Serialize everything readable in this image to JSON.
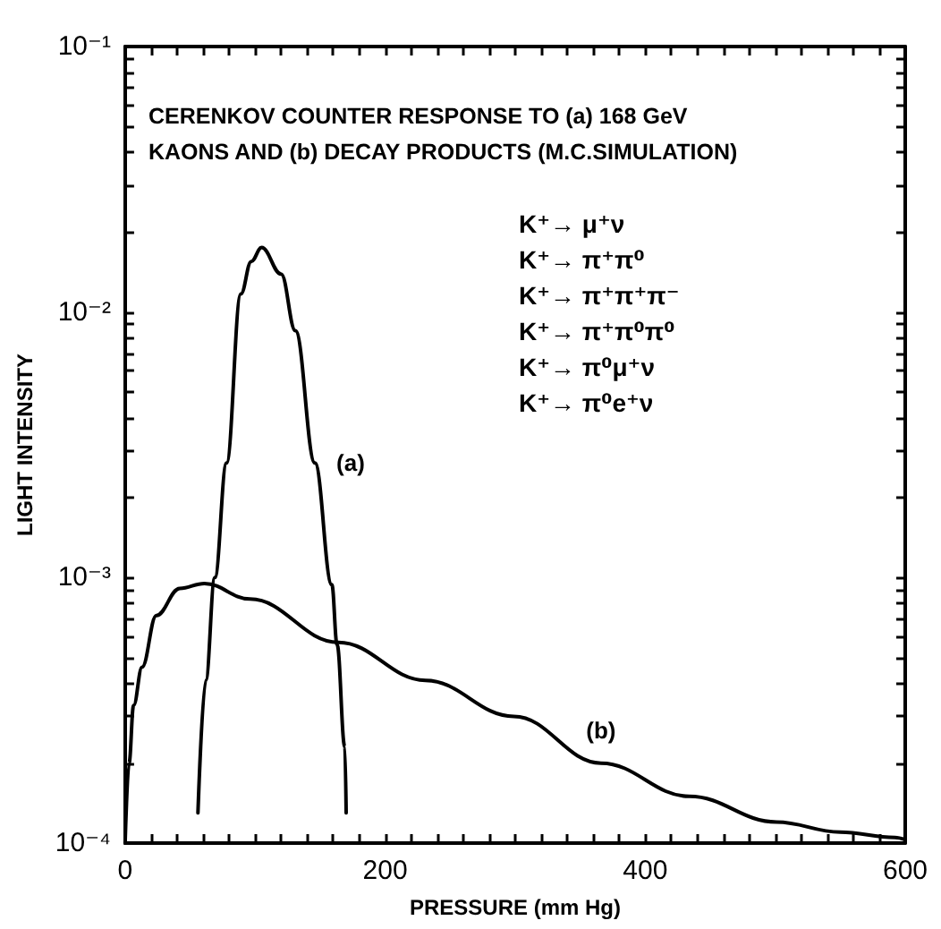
{
  "chart_data": {
    "type": "line",
    "title": "CERENKOV COUNTER RESPONSE TO (a) 168 GeV KAONS AND (b) DECAY PRODUCTS (M.C.SIMULATION)",
    "xlabel": "PRESSURE (mm Hg)",
    "ylabel": "LIGHT INTENSITY",
    "log": "y",
    "marker": "none",
    "line_style": "solid",
    "xlim": [
      0,
      600
    ],
    "ylim": [
      0.0001,
      0.1
    ],
    "xticks": [
      0,
      {
        "value": 20,
        "label": null
      },
      {
        "value": 40,
        "label": null
      },
      {
        "value": 60,
        "label": null
      },
      {
        "value": 80,
        "label": null
      },
      {
        "value": 100,
        "label": null
      },
      {
        "value": 120,
        "label": null
      },
      {
        "value": 140,
        "label": null
      },
      {
        "value": 160,
        "label": null
      },
      {
        "value": 180,
        "label": null
      },
      200,
      {
        "value": 220,
        "label": null
      },
      {
        "value": 240,
        "label": null
      },
      {
        "value": 260,
        "label": null
      },
      {
        "value": 280,
        "label": null
      },
      {
        "value": 300,
        "label": null
      },
      {
        "value": 320,
        "label": null
      },
      {
        "value": 340,
        "label": null
      },
      {
        "value": 360,
        "label": null
      },
      {
        "value": 380,
        "label": null
      },
      400,
      {
        "value": 420,
        "label": null
      },
      {
        "value": 440,
        "label": null
      },
      {
        "value": 460,
        "label": null
      },
      {
        "value": 480,
        "label": null
      },
      {
        "value": 500,
        "label": null
      },
      {
        "value": 520,
        "label": null
      },
      {
        "value": 540,
        "label": null
      },
      {
        "value": 560,
        "label": null
      },
      {
        "value": 580,
        "label": null
      },
      600
    ],
    "yticks": [
      {
        "value": 0.0001,
        "label": "10⁻⁴"
      },
      {
        "value": 0.0002,
        "label": null
      },
      {
        "value": 0.0003,
        "label": null
      },
      {
        "value": 0.0004,
        "label": null
      },
      {
        "value": 0.0005,
        "label": null
      },
      {
        "value": 0.0006,
        "label": null
      },
      {
        "value": 0.0007,
        "label": null
      },
      {
        "value": 0.0008,
        "label": null
      },
      {
        "value": 0.0009,
        "label": null
      },
      {
        "value": 0.001,
        "label": "10⁻³"
      },
      {
        "value": 0.002,
        "label": null
      },
      {
        "value": 0.003,
        "label": null
      },
      {
        "value": 0.004,
        "label": null
      },
      {
        "value": 0.005,
        "label": null
      },
      {
        "value": 0.006,
        "label": null
      },
      {
        "value": 0.007,
        "label": null
      },
      {
        "value": 0.008,
        "label": null
      },
      {
        "value": 0.009,
        "label": null
      },
      {
        "value": 0.01,
        "label": "10⁻²"
      },
      {
        "value": 0.02,
        "label": null
      },
      {
        "value": 0.03,
        "label": null
      },
      {
        "value": 0.04,
        "label": null
      },
      {
        "value": 0.05,
        "label": null
      },
      {
        "value": 0.06,
        "label": null
      },
      {
        "value": 0.07,
        "label": null
      },
      {
        "value": 0.08,
        "label": null
      },
      {
        "value": 0.09,
        "label": null
      },
      {
        "value": 0.1,
        "label": "10⁻¹"
      }
    ],
    "series": [
      {
        "name": "(a)",
        "color": "#000000",
        "x": [
          56,
          62,
          69,
          78,
          89,
          97,
          105,
          120,
          131,
          146,
          159,
          163,
          169,
          170
        ],
        "values": [
          0.00013,
          0.00041,
          0.001,
          0.0027,
          0.0117,
          0.0155,
          0.0175,
          0.0139,
          0.0085,
          0.0027,
          0.00094,
          0.00056,
          0.00023,
          0.00013
        ]
      },
      {
        "name": "(b)",
        "color": "#000000",
        "x": [
          0,
          3,
          6.5,
          13,
          24,
          42,
          61,
          96,
          164,
          231,
          299,
          366,
          434,
          501,
          550,
          592,
          600
        ],
        "values": [
          0.0001,
          0.0002,
          0.00033,
          0.00046,
          0.00072,
          0.00091,
          0.00095,
          0.00083,
          0.00057,
          0.00041,
          0.0003,
          0.0002,
          0.00015,
          0.00012,
          0.00011,
          0.000105,
          0.000103
        ]
      }
    ],
    "annotations": [
      "K⁺→ μ⁺ν",
      "K⁺→ π⁺π⁰",
      "K⁺→ π⁺π⁺π⁻",
      "K⁺→ π⁺π⁰π⁰",
      "K⁺→ π⁰μ⁺ν",
      "K⁺→ π⁰e⁺ν"
    ]
  }
}
